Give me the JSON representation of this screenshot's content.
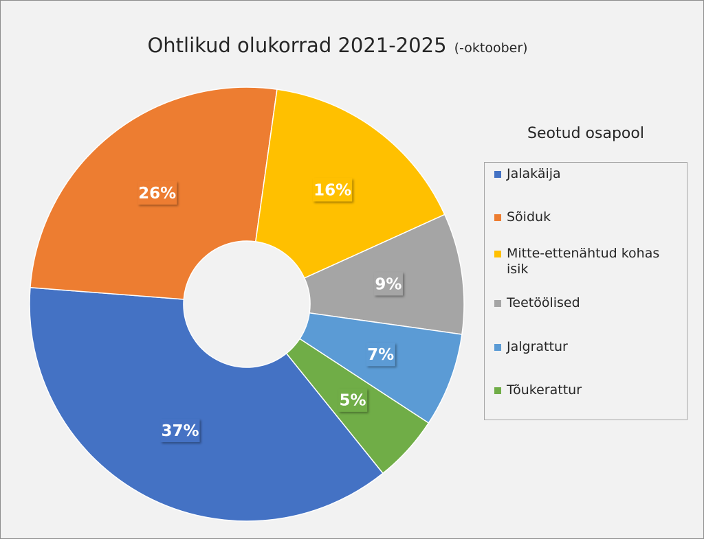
{
  "chart_data": {
    "type": "donut",
    "title": "Ohtlikud olukorrad 2021-2025",
    "subtitle": "(-oktoober)",
    "legend_title": "Seotud osapool",
    "categories": [
      "Jalakäija",
      "Sõiduk",
      "Mitte-ettenähtud kohas isik",
      "Teetöölised",
      "Jalgrattur",
      "Tõukerattur"
    ],
    "values": [
      37,
      26,
      16,
      9,
      7,
      5
    ],
    "value_labels": [
      "37%",
      "26%",
      "16%",
      "9%",
      "7%",
      "5%"
    ],
    "colors": [
      "#4472c4",
      "#ed7d31",
      "#ffc000",
      "#a5a5a5",
      "#5b9bd5",
      "#70ad47"
    ]
  }
}
